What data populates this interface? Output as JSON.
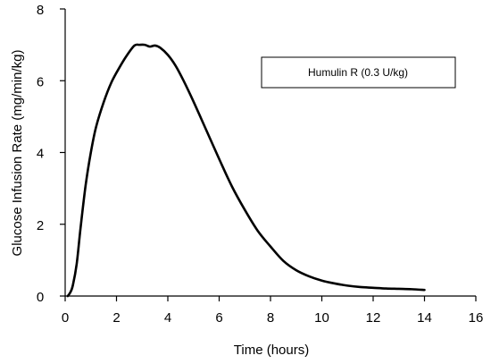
{
  "chart_data": {
    "type": "line",
    "title": "",
    "xlabel": "Time (hours)",
    "ylabel": "Glucose Infusion Rate (mg/min/kg)",
    "xlim": [
      0,
      16
    ],
    "ylim": [
      0,
      8
    ],
    "xticks": [
      0,
      2,
      4,
      6,
      8,
      10,
      12,
      14,
      16
    ],
    "yticks": [
      0,
      2,
      4,
      6,
      8
    ],
    "grid": false,
    "legend_position": "top-right",
    "series": [
      {
        "name": "Humulin R (0.3 U/kg)",
        "color": "#000000",
        "x": [
          0.1,
          0.2,
          0.3,
          0.45,
          0.6,
          0.8,
          1.0,
          1.2,
          1.5,
          1.8,
          2.1,
          2.4,
          2.7,
          2.9,
          3.1,
          3.3,
          3.5,
          3.7,
          4.0,
          4.3,
          4.6,
          5.0,
          5.5,
          6.0,
          6.5,
          7.0,
          7.5,
          8.0,
          8.5,
          9.0,
          9.5,
          10.0,
          10.5,
          11.0,
          11.5,
          12.0,
          12.5,
          13.0,
          13.5,
          14.0
        ],
        "y": [
          0.0,
          0.1,
          0.3,
          0.9,
          1.9,
          3.1,
          4.0,
          4.7,
          5.4,
          5.95,
          6.35,
          6.7,
          6.98,
          7.0,
          7.0,
          6.95,
          6.98,
          6.92,
          6.72,
          6.42,
          6.02,
          5.42,
          4.62,
          3.82,
          3.05,
          2.4,
          1.82,
          1.38,
          0.98,
          0.72,
          0.55,
          0.43,
          0.35,
          0.29,
          0.25,
          0.23,
          0.21,
          0.2,
          0.19,
          0.17
        ]
      }
    ]
  }
}
